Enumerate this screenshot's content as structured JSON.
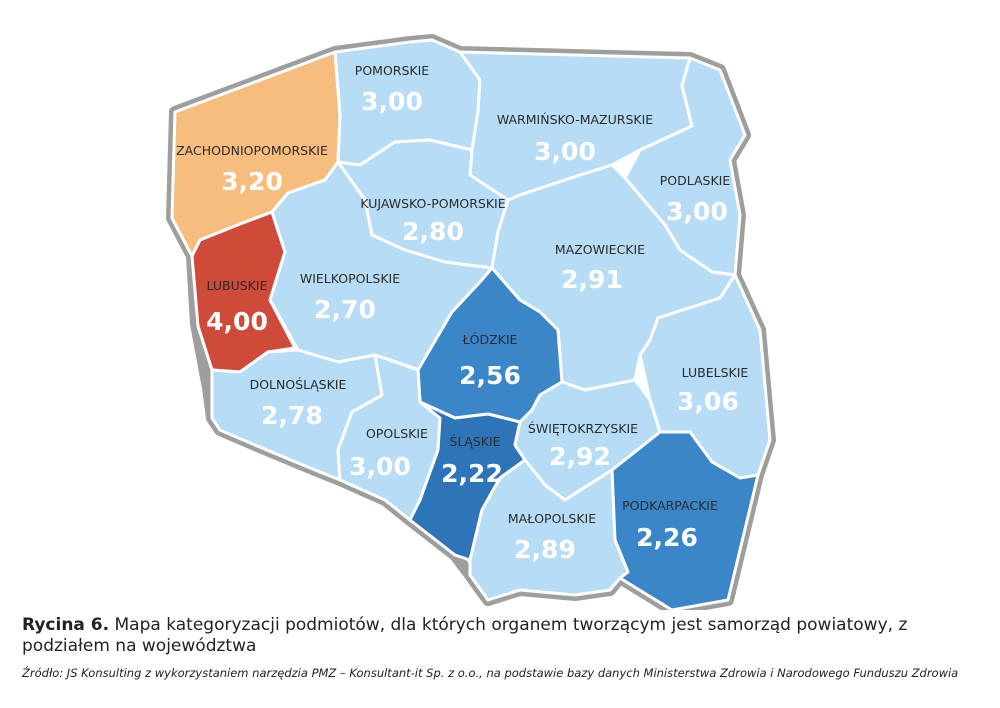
{
  "caption": {
    "label": "Rycina 6.",
    "text": "Mapa kategoryzacji podmiotów, dla których organem tworzącym jest samorząd powiatowy, z podziałem na województwa"
  },
  "source": "Źródło: JS Konsulting z wykorzystaniem narzędzia PMZ – Konsultant-it Sp. z o.o., na podstawie bazy danych Ministerstwa Zdrowia i Narodowego Funduszu Zdrowia",
  "colors": {
    "light": "#b7dcf5",
    "medium": "#3a86c8",
    "dark": "#2e74b8",
    "orange": "#f7bd7f",
    "red": "#d04a3a",
    "border_outer": "#9e9e9e",
    "border_inner": "#ffffff"
  },
  "regions": [
    {
      "key": "zachodniopomorskie",
      "name": "ZACHODNIOPOMORSKIE",
      "value": "3,20",
      "color": "#f7bd7f"
    },
    {
      "key": "pomorskie",
      "name": "POMORSKIE",
      "value": "3,00",
      "color": "#b7dcf5"
    },
    {
      "key": "warminsko",
      "name": "WARMIŃSKO-MAZURSKIE",
      "value": "3,00",
      "color": "#b7dcf5"
    },
    {
      "key": "podlaskie",
      "name": "PODLASKIE",
      "value": "3,00",
      "color": "#b7dcf5"
    },
    {
      "key": "kujawsko",
      "name": "KUJAWSKO-POMORSKIE",
      "value": "2,80",
      "color": "#b7dcf5"
    },
    {
      "key": "lubuskie",
      "name": "LUBUSKIE",
      "value": "4,00",
      "color": "#d04a3a"
    },
    {
      "key": "wielkopolskie",
      "name": "WIELKOPOLSKIE",
      "value": "2,70",
      "color": "#b7dcf5"
    },
    {
      "key": "mazowieckie",
      "name": "MAZOWIECKIE",
      "value": "2,91",
      "color": "#b7dcf5"
    },
    {
      "key": "lodzkie",
      "name": "ŁÓDZKIE",
      "value": "2,56",
      "color": "#3a86c8"
    },
    {
      "key": "lubelskie",
      "name": "LUBELSKIE",
      "value": "3,06",
      "color": "#b7dcf5"
    },
    {
      "key": "dolnoslaskie",
      "name": "DOLNOŚLĄSKIE",
      "value": "2,78",
      "color": "#b7dcf5"
    },
    {
      "key": "opolskie",
      "name": "OPOLSKIE",
      "value": "3,00",
      "color": "#b7dcf5"
    },
    {
      "key": "slaskie",
      "name": "ŚLĄSKIE",
      "value": "2,22",
      "color": "#2e74b8"
    },
    {
      "key": "swietokrzyskie",
      "name": "ŚWIĘTOKRZYSKIE",
      "value": "2,92",
      "color": "#b7dcf5"
    },
    {
      "key": "malopolskie",
      "name": "MAŁOPOLSKIE",
      "value": "2,89",
      "color": "#b7dcf5"
    },
    {
      "key": "podkarpackie",
      "name": "PODKARPACKIE",
      "value": "2,26",
      "color": "#3a86c8"
    }
  ]
}
